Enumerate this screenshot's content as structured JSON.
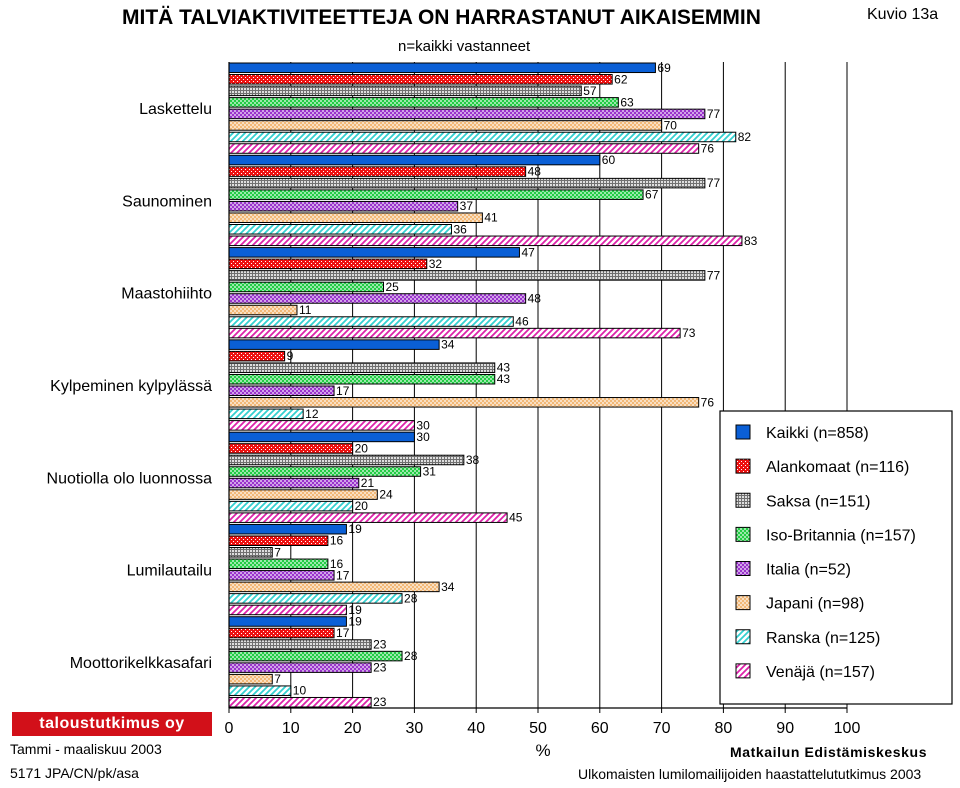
{
  "header": {
    "title": "MITÄ TALVIAKTIVITEETTEJA ON HARRASTANUT AIKAISEMMIN",
    "subtitle": "n=kaikki vastanneet",
    "figure_label": "Kuvio 13a"
  },
  "footer": {
    "logo_text": "taloustutkimus oy",
    "date": "Tammi - maaliskuu 2003",
    "code": "5171 JPA/CN/pk/asa",
    "organization": "Matkailun Edistämiskeskus",
    "source": "Ulkomaisten lumilomailijoiden haastattelututkimus 2003"
  },
  "chart_data": {
    "type": "bar",
    "orientation": "horizontal",
    "title": "MITÄ TALVIAKTIVITEETTEJA ON HARRASTANUT AIKAISEMMIN",
    "subtitle": "n=kaikki vastanneet",
    "xlabel": "%",
    "xlim": [
      0,
      100
    ],
    "xticks": [
      0,
      10,
      20,
      30,
      40,
      50,
      60,
      70,
      80,
      90,
      100
    ],
    "grid": "vertical",
    "legend_position": "right",
    "categories": [
      "Laskettelu",
      "Saunominen",
      "Maastohiihto",
      "Kylpeminen kylpylässä",
      "Nuotiolla olo luonnossa",
      "Lumilautailu",
      "Moottorikelkkasafari"
    ],
    "series": [
      {
        "name": "Kaikki (n=858)",
        "color": "#0a5fd6",
        "pattern": "solid",
        "values": [
          69,
          60,
          47,
          34,
          30,
          19,
          19
        ]
      },
      {
        "name": "Alankomaat (n=116)",
        "color": "#ee1111",
        "pattern": "dots",
        "values": [
          62,
          48,
          32,
          9,
          20,
          16,
          17
        ]
      },
      {
        "name": "Saksa (n=151)",
        "color": "#a0a0a0",
        "pattern": "grid",
        "values": [
          57,
          77,
          77,
          43,
          38,
          7,
          23
        ]
      },
      {
        "name": "Iso-Britannia (n=157)",
        "color": "#22cc44",
        "pattern": "checker",
        "values": [
          63,
          67,
          25,
          43,
          31,
          16,
          28
        ]
      },
      {
        "name": "Italia (n=52)",
        "color": "#9a33cc",
        "pattern": "checker",
        "values": [
          77,
          37,
          48,
          17,
          21,
          17,
          23
        ]
      },
      {
        "name": "Japani (n=98)",
        "color": "#f2b877",
        "pattern": "checker",
        "values": [
          70,
          41,
          11,
          76,
          24,
          34,
          7
        ]
      },
      {
        "name": "Ranska (n=125)",
        "color": "#33d0d0",
        "pattern": "hatch",
        "values": [
          82,
          36,
          46,
          12,
          20,
          28,
          10
        ]
      },
      {
        "name": "Venäjä (n=157)",
        "color": "#dd22aa",
        "pattern": "hatch",
        "values": [
          76,
          83,
          73,
          30,
          45,
          19,
          23
        ]
      }
    ]
  }
}
